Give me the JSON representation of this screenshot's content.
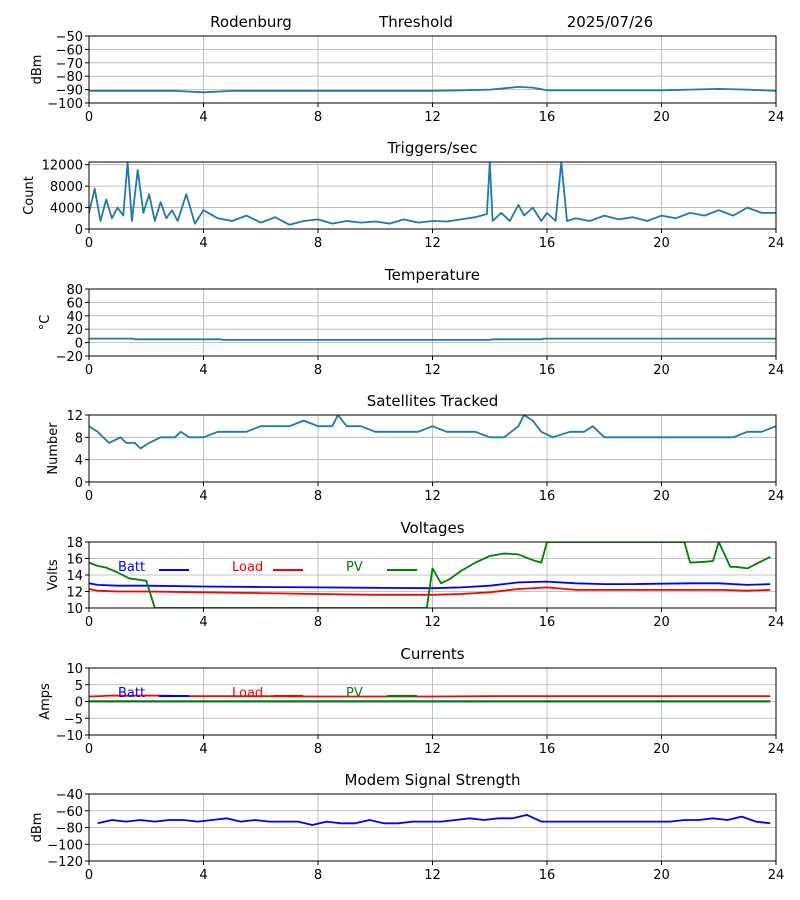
{
  "header": {
    "station": "Rodenburg",
    "mode": "Threshold",
    "date": "2025/07/26"
  },
  "chart_data": [
    {
      "type": "line",
      "title": "",
      "xlabel": "",
      "ylabel": "dBm",
      "xlim": [
        0,
        24
      ],
      "ylim": [
        -100,
        -50
      ],
      "xticks": [
        0,
        4,
        8,
        12,
        16,
        20,
        24
      ],
      "yticks": [
        -100,
        -90,
        -80,
        -70,
        -60,
        -50
      ],
      "grid": true,
      "series": [
        {
          "color": "#1f77b4",
          "x": [
            0,
            1,
            2,
            3,
            4,
            5,
            6,
            7,
            8,
            9,
            10,
            11,
            12,
            13,
            14,
            14.5,
            15,
            15.5,
            16,
            17,
            18,
            19,
            20,
            21,
            22,
            23,
            24
          ],
          "y": [
            -91,
            -91,
            -91,
            -91,
            -92,
            -91,
            -91,
            -91,
            -91,
            -91,
            -91,
            -91,
            -91,
            -90.5,
            -90,
            -89,
            -88,
            -88.5,
            -90.5,
            -90.5,
            -90.5,
            -90.5,
            -90.5,
            -90,
            -89.5,
            -90,
            -91
          ]
        }
      ]
    },
    {
      "type": "line",
      "title": "Triggers/sec",
      "xlabel": "",
      "ylabel": "Count",
      "xlim": [
        0,
        24
      ],
      "ylim": [
        0,
        12500
      ],
      "xticks": [
        0,
        4,
        8,
        12,
        16,
        20,
        24
      ],
      "yticks": [
        0,
        4000,
        8000,
        12000
      ],
      "grid": true,
      "series": [
        {
          "color": "#1f77b4",
          "x": [
            0,
            0.2,
            0.4,
            0.6,
            0.8,
            1.0,
            1.2,
            1.35,
            1.5,
            1.7,
            1.9,
            2.1,
            2.3,
            2.5,
            2.7,
            2.9,
            3.1,
            3.4,
            3.7,
            4.0,
            4.5,
            5.0,
            5.5,
            6.0,
            6.5,
            7.0,
            7.5,
            8.0,
            8.5,
            9.0,
            9.5,
            10.0,
            10.5,
            11.0,
            11.5,
            12.0,
            12.5,
            13.0,
            13.5,
            13.9,
            14.0,
            14.1,
            14.4,
            14.7,
            15.0,
            15.2,
            15.5,
            15.8,
            16.0,
            16.3,
            16.5,
            16.7,
            17.0,
            17.5,
            18.0,
            18.5,
            19.0,
            19.5,
            20.0,
            20.5,
            21.0,
            21.5,
            22.0,
            22.5,
            23.0,
            23.5,
            24.0
          ],
          "y": [
            3000,
            7500,
            1500,
            5500,
            2000,
            4000,
            2500,
            12500,
            1500,
            11000,
            3000,
            6500,
            1500,
            5000,
            2000,
            3500,
            1500,
            6500,
            1000,
            3500,
            2000,
            1500,
            2500,
            1200,
            2200,
            800,
            1500,
            1800,
            1000,
            1500,
            1200,
            1400,
            1000,
            1800,
            1200,
            1500,
            1400,
            1800,
            2200,
            2800,
            12500,
            1500,
            3000,
            1500,
            4500,
            2500,
            4000,
            1500,
            3000,
            1500,
            12500,
            1500,
            2000,
            1500,
            2500,
            1800,
            2200,
            1500,
            2500,
            2000,
            3000,
            2500,
            3500,
            2500,
            4000,
            3000,
            3000
          ]
        }
      ]
    },
    {
      "type": "line",
      "title": "Temperature",
      "xlabel": "",
      "ylabel": "°C",
      "xlim": [
        0,
        24
      ],
      "ylim": [
        -20,
        80
      ],
      "xticks": [
        0,
        4,
        8,
        12,
        16,
        20,
        24
      ],
      "yticks": [
        -20,
        0,
        20,
        40,
        60,
        80
      ],
      "grid": true,
      "series": [
        {
          "color": "#1f77b4",
          "x": [
            0,
            1.5,
            1.6,
            4.6,
            4.7,
            14.0,
            14.1,
            15.8,
            15.9,
            24
          ],
          "y": [
            6,
            6,
            5,
            5,
            4,
            4,
            5,
            5,
            6,
            6
          ]
        }
      ]
    },
    {
      "type": "line",
      "title": "Satellites Tracked",
      "xlabel": "",
      "ylabel": "Number",
      "xlim": [
        0,
        24
      ],
      "ylim": [
        0,
        12
      ],
      "xticks": [
        0,
        4,
        8,
        12,
        16,
        20,
        24
      ],
      "yticks": [
        0,
        4,
        8,
        12
      ],
      "grid": true,
      "series": [
        {
          "color": "#1f77b4",
          "x": [
            0,
            0.3,
            0.7,
            1.1,
            1.3,
            1.6,
            1.8,
            2.1,
            2.5,
            3.0,
            3.2,
            3.5,
            4.0,
            4.5,
            5.0,
            5.5,
            6.0,
            6.5,
            7.0,
            7.5,
            8.0,
            8.5,
            8.7,
            9.0,
            9.5,
            10.0,
            11.0,
            11.5,
            12.0,
            12.5,
            13.5,
            14.0,
            14.5,
            15.0,
            15.2,
            15.5,
            15.8,
            16.2,
            16.8,
            17.3,
            17.6,
            18.0,
            18.5,
            19.0,
            19.5,
            20.0,
            20.5,
            21.0,
            21.5,
            22.0,
            22.5,
            23.0,
            23.5,
            24.0
          ],
          "y": [
            10,
            9,
            7,
            8,
            7,
            7,
            6,
            7,
            8,
            8,
            9,
            8,
            8,
            9,
            9,
            9,
            10,
            10,
            10,
            11,
            10,
            10,
            12,
            10,
            10,
            9,
            9,
            9,
            10,
            9,
            9,
            8,
            8,
            10,
            12,
            11,
            9,
            8,
            9,
            9,
            10,
            8,
            8,
            8,
            8,
            8,
            8,
            8,
            8,
            8,
            8,
            9,
            9,
            10
          ]
        }
      ]
    },
    {
      "type": "line",
      "title": "Voltages",
      "xlabel": "",
      "ylabel": "Volts",
      "xlim": [
        0,
        24
      ],
      "ylim": [
        10,
        18
      ],
      "xticks": [
        0,
        4,
        8,
        12,
        16,
        20,
        24
      ],
      "yticks": [
        10,
        12,
        14,
        16,
        18
      ],
      "grid": true,
      "legend": "top-left",
      "series": [
        {
          "name": "Batt",
          "color": "#0000ff",
          "x": [
            0,
            0.3,
            1,
            2,
            4,
            6,
            8,
            10,
            12,
            13,
            14,
            15,
            16,
            17,
            18,
            19,
            20,
            21,
            22,
            23,
            23.8
          ],
          "y": [
            13.0,
            12.8,
            12.7,
            12.7,
            12.6,
            12.55,
            12.5,
            12.45,
            12.4,
            12.5,
            12.7,
            13.1,
            13.2,
            13.0,
            12.9,
            12.9,
            12.95,
            13.0,
            13.0,
            12.8,
            12.9
          ]
        },
        {
          "name": "Load",
          "color": "#ff0000",
          "x": [
            0,
            0.3,
            1,
            2,
            4,
            6,
            8,
            10,
            12,
            13,
            14,
            15,
            16,
            17,
            18,
            19,
            20,
            21,
            22,
            23,
            23.8
          ],
          "y": [
            12.3,
            12.1,
            12.0,
            12.0,
            11.9,
            11.8,
            11.7,
            11.6,
            11.6,
            11.7,
            11.9,
            12.3,
            12.5,
            12.2,
            12.2,
            12.2,
            12.2,
            12.2,
            12.2,
            12.1,
            12.2
          ]
        },
        {
          "name": "PV",
          "color": "#008000",
          "x": [
            0,
            0.3,
            0.6,
            1.0,
            1.4,
            1.8,
            2.0,
            2.3,
            11.8,
            12.0,
            12.3,
            12.6,
            13.0,
            13.5,
            14.0,
            14.5,
            15.0,
            15.5,
            15.8,
            16.0,
            20.8,
            21.0,
            21.5,
            21.8,
            22.0,
            22.4,
            22.6,
            23.0,
            23.4,
            23.8
          ],
          "y": [
            15.5,
            15.1,
            14.9,
            14.3,
            13.6,
            13.4,
            13.3,
            10.0,
            10.0,
            14.8,
            13.0,
            13.5,
            14.5,
            15.5,
            16.3,
            16.6,
            16.5,
            15.8,
            15.5,
            18.0,
            18.0,
            15.5,
            15.6,
            15.7,
            18.0,
            15.0,
            15.0,
            14.8,
            15.5,
            16.2
          ]
        }
      ]
    },
    {
      "type": "line",
      "title": "Currents",
      "xlabel": "",
      "ylabel": "Amps",
      "xlim": [
        0,
        24
      ],
      "ylim": [
        -10,
        10
      ],
      "xticks": [
        0,
        4,
        8,
        12,
        16,
        20,
        24
      ],
      "yticks": [
        -10,
        -5,
        0,
        5,
        10
      ],
      "grid": true,
      "legend": "top-left",
      "series": [
        {
          "name": "Batt",
          "color": "#0000ff",
          "x": [
            0,
            23.8
          ],
          "y": [
            0.0,
            0.0
          ]
        },
        {
          "name": "Load",
          "color": "#ff0000",
          "x": [
            0,
            0.4,
            0.8,
            1.2,
            2.0,
            2.8,
            3.2,
            4.0,
            6.0,
            8.0,
            10.0,
            12.0,
            14.0,
            16.0,
            18.0,
            20.0,
            22.0,
            23.8
          ],
          "y": [
            1.5,
            1.6,
            1.8,
            1.7,
            1.8,
            1.7,
            1.6,
            1.6,
            1.6,
            1.5,
            1.5,
            1.5,
            1.6,
            1.6,
            1.6,
            1.6,
            1.6,
            1.6
          ]
        },
        {
          "name": "PV",
          "color": "#008000",
          "x": [
            0,
            23.8
          ],
          "y": [
            0.1,
            0.1
          ]
        }
      ]
    },
    {
      "type": "line",
      "title": "Modem Signal Strength",
      "xlabel": "",
      "ylabel": "dBm",
      "xlim": [
        0,
        24
      ],
      "ylim": [
        -120,
        -40
      ],
      "xticks": [
        0,
        4,
        8,
        12,
        16,
        20,
        24
      ],
      "yticks": [
        -120,
        -100,
        -80,
        -60,
        -40
      ],
      "grid": true,
      "series": [
        {
          "color": "#0000ff",
          "x": [
            0.3,
            0.8,
            1.3,
            1.8,
            2.3,
            2.8,
            3.3,
            3.8,
            4.3,
            4.8,
            5.3,
            5.8,
            6.3,
            6.8,
            7.3,
            7.8,
            8.3,
            8.8,
            9.3,
            9.8,
            10.3,
            10.8,
            11.3,
            11.8,
            12.3,
            12.8,
            13.3,
            13.8,
            14.3,
            14.8,
            15.3,
            15.8,
            16.3,
            16.8,
            17.3,
            17.8,
            18.3,
            18.8,
            19.3,
            19.8,
            20.3,
            20.8,
            21.3,
            21.8,
            22.3,
            22.8,
            23.3,
            23.8
          ],
          "y": [
            -75,
            -71,
            -73,
            -71,
            -73,
            -71,
            -71,
            -73,
            -71,
            -69,
            -73,
            -71,
            -73,
            -73,
            -73,
            -77,
            -73,
            -75,
            -75,
            -71,
            -75,
            -75,
            -73,
            -73,
            -73,
            -71,
            -69,
            -71,
            -69,
            -69,
            -65,
            -73,
            -73,
            -73,
            -73,
            -73,
            -73,
            -73,
            -73,
            -73,
            -73,
            -71,
            -71,
            -69,
            -71,
            -67,
            -73,
            -75
          ]
        }
      ]
    }
  ]
}
